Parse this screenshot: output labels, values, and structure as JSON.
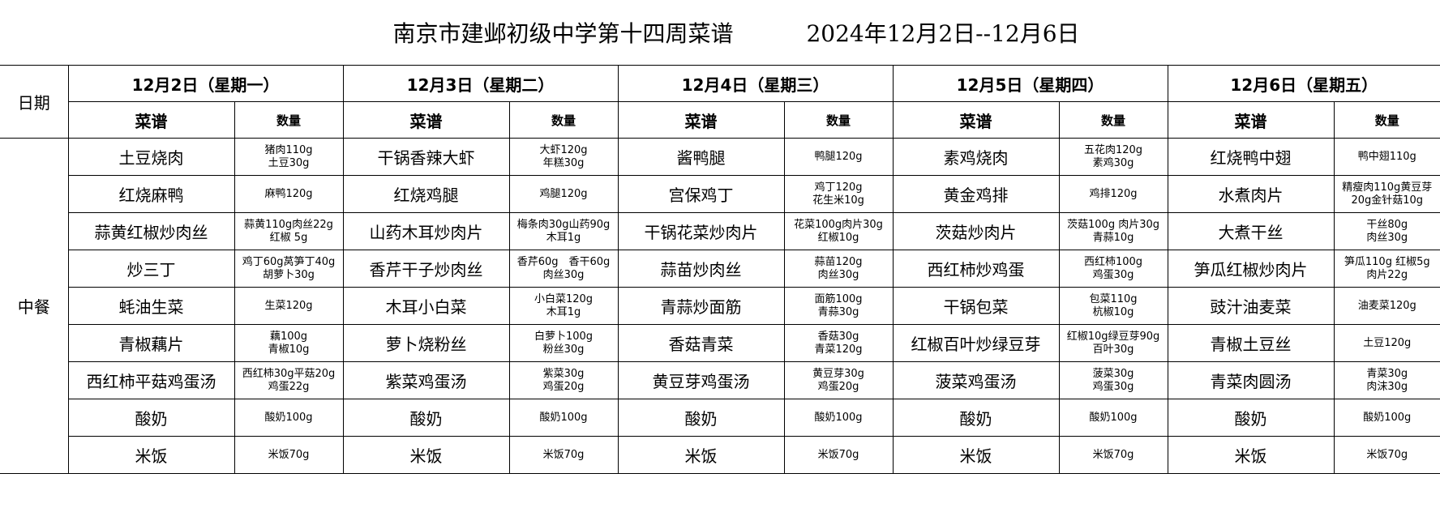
{
  "title": "南京市建邺初级中学第十四周菜谱",
  "date_range": "2024年12月2日--12月6日",
  "row_header": "日期",
  "meal_label": "中餐",
  "dish_header": "菜谱",
  "qty_header": "数量",
  "days": [
    {
      "label": "12月2日（星期一）",
      "dishes": [
        {
          "name": "土豆烧肉",
          "qty": [
            "猪肉110g",
            "土豆30g"
          ]
        },
        {
          "name": "红烧麻鸭",
          "qty": [
            "麻鸭120g"
          ]
        },
        {
          "name": "蒜黄红椒炒肉丝",
          "qty": [
            "蒜黄110g肉丝22g",
            "红椒 5g"
          ]
        },
        {
          "name": "炒三丁",
          "qty": [
            "鸡丁60g莴笋丁40g",
            "胡萝卜30g"
          ]
        },
        {
          "name": "蚝油生菜",
          "qty": [
            "生菜120g"
          ]
        },
        {
          "name": "青椒藕片",
          "qty": [
            "藕100g",
            "青椒10g"
          ]
        },
        {
          "name": "西红柿平菇鸡蛋汤",
          "qty": [
            "西红柿30g平菇20g",
            "鸡蛋22g"
          ]
        },
        {
          "name": "酸奶",
          "qty": [
            "酸奶100g"
          ]
        },
        {
          "name": "米饭",
          "qty": [
            "米饭70g"
          ]
        }
      ]
    },
    {
      "label": "12月3日（星期二）",
      "dishes": [
        {
          "name": "干锅香辣大虾",
          "qty": [
            "大虾120g",
            "年糕30g"
          ]
        },
        {
          "name": "红烧鸡腿",
          "qty": [
            "鸡腿120g"
          ]
        },
        {
          "name": "山药木耳炒肉片",
          "qty": [
            "梅条肉30g山药90g",
            "木耳1g"
          ]
        },
        {
          "name": "香芹干子炒肉丝",
          "qty": [
            "香芹60g　香干60g",
            "肉丝30g"
          ]
        },
        {
          "name": "木耳小白菜",
          "qty": [
            "小白菜120g",
            "木耳1g"
          ]
        },
        {
          "name": "萝卜烧粉丝",
          "qty": [
            "白萝卜100g",
            "粉丝30g"
          ]
        },
        {
          "name": "紫菜鸡蛋汤",
          "qty": [
            "紫菜30g",
            "鸡蛋20g"
          ]
        },
        {
          "name": "酸奶",
          "qty": [
            "酸奶100g"
          ]
        },
        {
          "name": "米饭",
          "qty": [
            "米饭70g"
          ]
        }
      ]
    },
    {
      "label": "12月4日（星期三）",
      "dishes": [
        {
          "name": "酱鸭腿",
          "qty": [
            "鸭腿120g"
          ]
        },
        {
          "name": "宫保鸡丁",
          "qty": [
            "鸡丁120g",
            "花生米10g"
          ]
        },
        {
          "name": "干锅花菜炒肉片",
          "qty": [
            "花菜100g肉片30g",
            "红椒10g"
          ]
        },
        {
          "name": "蒜苗炒肉丝",
          "qty": [
            "蒜苗120g",
            "肉丝30g"
          ]
        },
        {
          "name": "青蒜炒面筋",
          "qty": [
            "面筋100g",
            "青蒜30g"
          ]
        },
        {
          "name": "香菇青菜",
          "qty": [
            "香菇30g",
            "青菜120g"
          ]
        },
        {
          "name": "黄豆芽鸡蛋汤",
          "qty": [
            "黄豆芽30g",
            "鸡蛋20g"
          ]
        },
        {
          "name": "酸奶",
          "qty": [
            "酸奶100g"
          ]
        },
        {
          "name": "米饭",
          "qty": [
            "米饭70g"
          ]
        }
      ]
    },
    {
      "label": "12月5日（星期四）",
      "dishes": [
        {
          "name": "素鸡烧肉",
          "qty": [
            "五花肉120g",
            "素鸡30g"
          ]
        },
        {
          "name": "黄金鸡排",
          "qty": [
            "鸡排120g"
          ]
        },
        {
          "name": "茨菇炒肉片",
          "qty": [
            "茨菇100g 肉片30g",
            "青蒜10g"
          ]
        },
        {
          "name": "西红柿炒鸡蛋",
          "qty": [
            "西红柿100g",
            "鸡蛋30g"
          ]
        },
        {
          "name": "干锅包菜",
          "qty": [
            "包菜110g",
            "杭椒10g"
          ]
        },
        {
          "name": "红椒百叶炒绿豆芽",
          "qty": [
            "红椒10g绿豆芽90g",
            "百叶30g"
          ]
        },
        {
          "name": "菠菜鸡蛋汤",
          "qty": [
            "菠菜30g",
            "鸡蛋30g"
          ]
        },
        {
          "name": "酸奶",
          "qty": [
            "酸奶100g"
          ]
        },
        {
          "name": "米饭",
          "qty": [
            "米饭70g"
          ]
        }
      ]
    },
    {
      "label": "12月6日（星期五）",
      "dishes": [
        {
          "name": "红烧鸭中翅",
          "qty": [
            "鸭中翅110g"
          ]
        },
        {
          "name": "水煮肉片",
          "qty": [
            "精瘦肉110g黄豆芽",
            "20g金针菇10g"
          ]
        },
        {
          "name": "大煮干丝",
          "qty": [
            "干丝80g",
            "肉丝30g"
          ]
        },
        {
          "name": "笋瓜红椒炒肉片",
          "qty": [
            "笋瓜110g 红椒5g",
            "肉片22g"
          ]
        },
        {
          "name": "豉汁油麦菜",
          "qty": [
            "油麦菜120g"
          ]
        },
        {
          "name": "青椒土豆丝",
          "qty": [
            "土豆120g"
          ]
        },
        {
          "name": "青菜肉圆汤",
          "qty": [
            "青菜30g",
            "肉沫30g"
          ]
        },
        {
          "name": "酸奶",
          "qty": [
            "酸奶100g"
          ]
        },
        {
          "name": "米饭",
          "qty": [
            "米饭70g"
          ]
        }
      ]
    }
  ]
}
